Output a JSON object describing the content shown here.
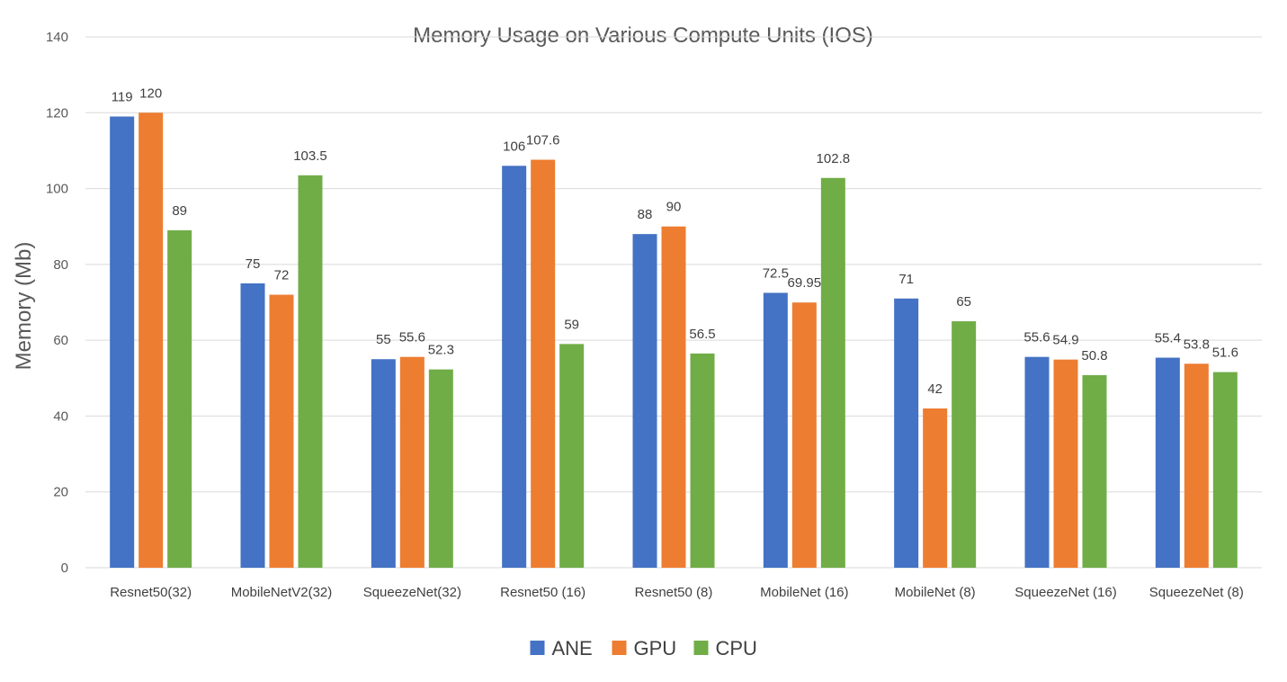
{
  "chart_data": {
    "type": "bar",
    "title": "Memory Usage on Various Compute Units (IOS)",
    "xlabel": "",
    "ylabel": "Memory (Mb)",
    "ylim": [
      0,
      140
    ],
    "yticks": [
      0,
      20,
      40,
      60,
      80,
      100,
      120,
      140
    ],
    "grid": true,
    "legend_position": "bottom",
    "categories": [
      "Resnet50(32)",
      "MobileNetV2(32)",
      "SqueezeNet(32)",
      "Resnet50 (16)",
      "Resnet50 (8)",
      "MobileNet (16)",
      "MobileNet (8)",
      "SqueezeNet (16)",
      "SqueezeNet (8)"
    ],
    "series": [
      {
        "name": "ANE",
        "color": "#4472c4",
        "values": [
          119,
          75,
          55,
          106,
          88,
          72.5,
          71,
          55.6,
          55.4
        ],
        "labels": [
          "119",
          "75",
          "55",
          "106",
          "88",
          "72.5",
          "71",
          "55.6",
          "55.4"
        ]
      },
      {
        "name": "GPU",
        "color": "#ed7d31",
        "values": [
          120,
          72,
          55.6,
          107.6,
          90,
          69.95,
          42,
          54.9,
          53.8
        ],
        "labels": [
          "120",
          "72",
          "55.6",
          "107.6",
          "90",
          "69.95",
          "42",
          "54.9",
          "53.8"
        ]
      },
      {
        "name": "CPU",
        "color": "#70ad47",
        "values": [
          89,
          103.5,
          52.3,
          59,
          56.5,
          102.8,
          65,
          50.8,
          51.6
        ],
        "labels": [
          "89",
          "103.5",
          "52.3",
          "59",
          "56.5",
          "102.8",
          "65",
          "50.8",
          "51.6"
        ]
      }
    ]
  }
}
